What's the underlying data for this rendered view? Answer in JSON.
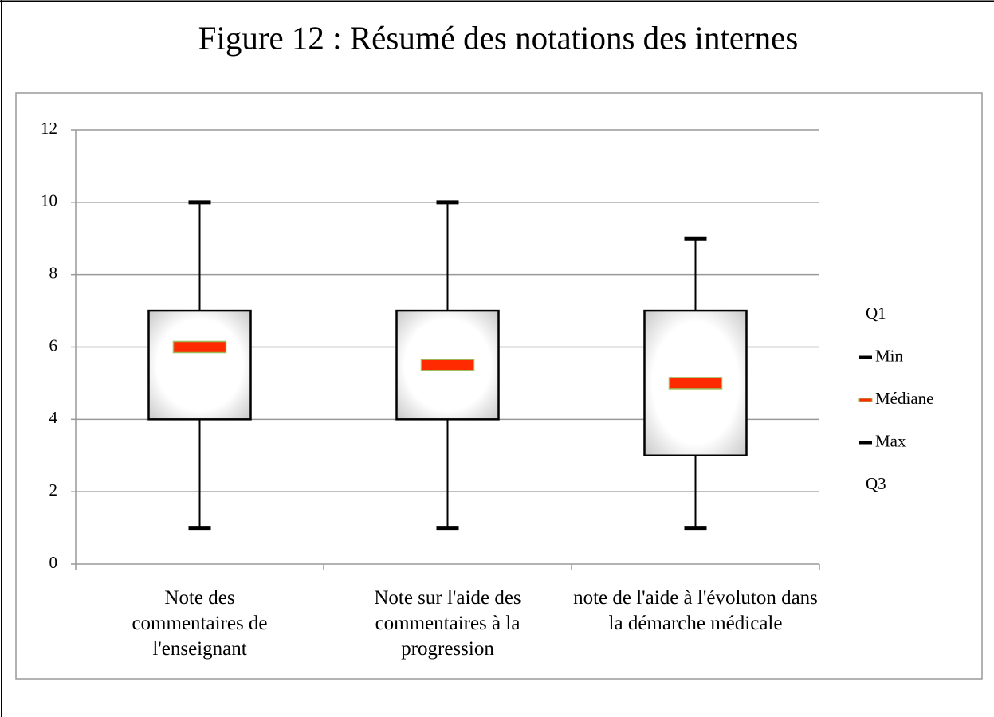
{
  "chart_data": {
    "type": "box",
    "title": "Figure 12 : Résumé des notations des internes",
    "categories": [
      "Note des commentaires de l'enseignant",
      "Note sur l'aide des commentaires à la progression",
      "note de l'aide à l'évoluton dans la démarche médicale"
    ],
    "series": [
      {
        "name": "Q1",
        "values": [
          4,
          4,
          3
        ]
      },
      {
        "name": "Min",
        "color": "#000000",
        "values": [
          1,
          1,
          1
        ]
      },
      {
        "name": "Médiane",
        "color": "#ff2a00",
        "values": [
          6,
          5.5,
          5
        ]
      },
      {
        "name": "Max",
        "color": "#000000",
        "values": [
          10,
          10,
          9
        ]
      },
      {
        "name": "Q3",
        "values": [
          7,
          7,
          7
        ]
      }
    ],
    "ylim": [
      0,
      12
    ],
    "yticks": [
      0,
      2,
      4,
      6,
      8,
      10,
      12
    ],
    "grid": true
  }
}
